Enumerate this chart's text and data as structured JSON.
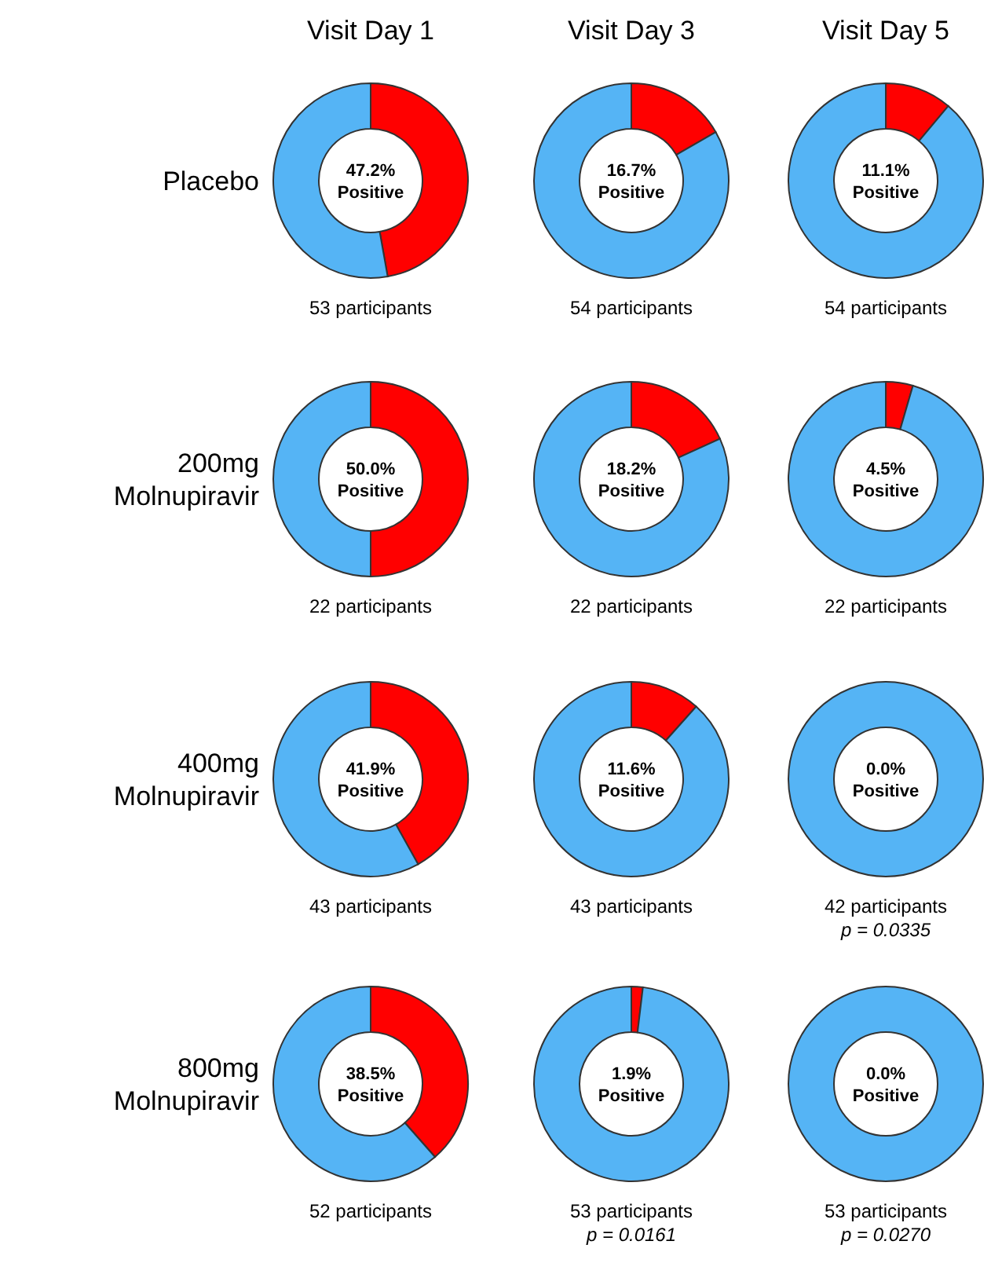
{
  "chart_data": [
    {
      "type": "donut",
      "title": "Visit Day 1",
      "ylabel": "Placebo",
      "categories": [
        "Positive",
        null
      ],
      "values": [
        47.2,
        52.8
      ],
      "colors": [
        "#ff0000",
        "#55b4f5"
      ],
      "value_labels": [
        "47.2%",
        null
      ],
      "annotations": [
        "53 participants"
      ]
    },
    {
      "type": "donut",
      "title": "Visit Day 3",
      "categories": [
        "Positive",
        null
      ],
      "values": [
        16.7,
        83.3
      ],
      "colors": [
        "#ff0000",
        "#55b4f5"
      ],
      "value_labels": [
        "16.7%",
        null
      ],
      "annotations": [
        "54 participants"
      ]
    },
    {
      "type": "donut",
      "title": "Visit Day 5",
      "categories": [
        "Positive",
        null
      ],
      "values": [
        11.1,
        88.9
      ],
      "colors": [
        "#ff0000",
        "#55b4f5"
      ],
      "value_labels": [
        "11.1%",
        null
      ],
      "annotations": [
        "54 participants"
      ]
    },
    {
      "type": "donut",
      "ylabel": "200mg\nMolnupiravir",
      "categories": [
        "Positive",
        null
      ],
      "values": [
        50.0,
        50.0
      ],
      "colors": [
        "#ff0000",
        "#55b4f5"
      ],
      "value_labels": [
        "50.0%",
        null
      ],
      "annotations": [
        "22 participants"
      ]
    },
    {
      "type": "donut",
      "categories": [
        "Positive",
        null
      ],
      "values": [
        18.2,
        81.8
      ],
      "colors": [
        "#ff0000",
        "#55b4f5"
      ],
      "value_labels": [
        "18.2%",
        null
      ],
      "annotations": [
        "22 participants"
      ]
    },
    {
      "type": "donut",
      "categories": [
        "Positive",
        null
      ],
      "values": [
        4.5,
        95.5
      ],
      "colors": [
        "#ff0000",
        "#55b4f5"
      ],
      "value_labels": [
        "4.5%",
        null
      ],
      "annotations": [
        "22 participants"
      ]
    },
    {
      "type": "donut",
      "ylabel": "400mg\nMolnupiravir",
      "categories": [
        "Positive",
        null
      ],
      "values": [
        41.9,
        58.1
      ],
      "colors": [
        "#ff0000",
        "#55b4f5"
      ],
      "value_labels": [
        "41.9%",
        null
      ],
      "annotations": [
        "43 participants"
      ]
    },
    {
      "type": "donut",
      "categories": [
        "Positive",
        null
      ],
      "values": [
        11.6,
        88.4
      ],
      "colors": [
        "#ff0000",
        "#55b4f5"
      ],
      "value_labels": [
        "11.6%",
        null
      ],
      "annotations": [
        "43 participants"
      ]
    },
    {
      "type": "donut",
      "categories": [
        "Positive",
        null
      ],
      "values": [
        0.0,
        100.0
      ],
      "colors": [
        "#ff0000",
        "#55b4f5"
      ],
      "value_labels": [
        "0.0%",
        null
      ],
      "annotations": [
        "42 participants",
        "p = 0.0335"
      ]
    },
    {
      "type": "donut",
      "ylabel": "800mg\nMolnupiravir",
      "categories": [
        "Positive",
        null
      ],
      "values": [
        38.5,
        61.5
      ],
      "colors": [
        "#ff0000",
        "#55b4f5"
      ],
      "value_labels": [
        "38.5%",
        null
      ],
      "annotations": [
        "52 participants"
      ]
    },
    {
      "type": "donut",
      "categories": [
        "Positive",
        null
      ],
      "values": [
        1.9,
        98.1
      ],
      "colors": [
        "#ff0000",
        "#55b4f5"
      ],
      "value_labels": [
        "1.9%",
        null
      ],
      "annotations": [
        "53 participants",
        "p = 0.0161"
      ]
    },
    {
      "type": "donut",
      "categories": [
        "Positive",
        null
      ],
      "values": [
        0.0,
        100.0
      ],
      "colors": [
        "#ff0000",
        "#55b4f5"
      ],
      "value_labels": [
        "0.0%",
        null
      ],
      "annotations": [
        "53 participants",
        "p = 0.0270"
      ]
    }
  ]
}
